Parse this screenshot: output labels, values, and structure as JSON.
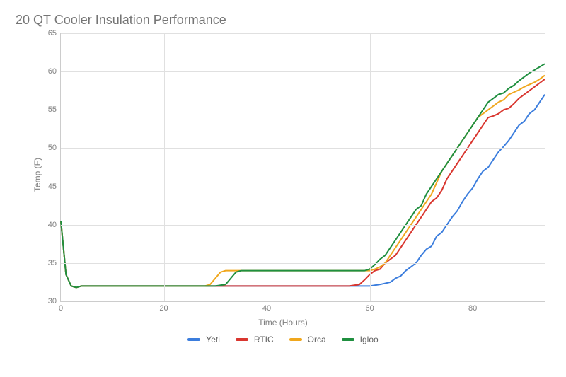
{
  "chart": {
    "type": "line",
    "title": "20 QT Cooler Insulation Performance",
    "title_fontsize": 18,
    "title_color": "#757575",
    "x_axis": {
      "label": "Time (Hours)",
      "min": 0,
      "max": 94,
      "ticks": [
        0,
        20,
        40,
        60,
        80
      ],
      "label_color": "#808080",
      "tick_fontsize": 11
    },
    "y_axis": {
      "label": "Temp (F)",
      "min": 30,
      "max": 65,
      "ticks": [
        30,
        35,
        40,
        45,
        50,
        55,
        60,
        65
      ],
      "label_color": "#808080",
      "tick_fontsize": 11
    },
    "background_color": "#ffffff",
    "grid_color": "#e0e0e0",
    "axis_line_color": "#cccccc",
    "line_width": 2,
    "legend": {
      "position": "bottom-center",
      "fontsize": 12,
      "text_color": "#606060"
    },
    "series": [
      {
        "name": "Yeti",
        "color": "#3b7ddd",
        "points": [
          [
            0,
            40.5
          ],
          [
            1,
            33.5
          ],
          [
            2,
            32
          ],
          [
            3,
            31.8
          ],
          [
            4,
            32
          ],
          [
            10,
            32
          ],
          [
            20,
            32
          ],
          [
            30,
            32
          ],
          [
            35,
            32
          ],
          [
            40,
            32
          ],
          [
            50,
            32
          ],
          [
            58,
            32
          ],
          [
            60,
            32
          ],
          [
            62,
            32.2
          ],
          [
            64,
            32.5
          ],
          [
            65,
            33
          ],
          [
            66,
            33.3
          ],
          [
            67,
            34
          ],
          [
            68,
            34.5
          ],
          [
            69,
            35
          ],
          [
            70,
            36
          ],
          [
            71,
            36.8
          ],
          [
            72,
            37.2
          ],
          [
            73,
            38.5
          ],
          [
            74,
            39
          ],
          [
            75,
            40
          ],
          [
            76,
            41
          ],
          [
            77,
            41.8
          ],
          [
            78,
            43
          ],
          [
            79,
            44
          ],
          [
            80,
            44.8
          ],
          [
            81,
            46
          ],
          [
            82,
            47
          ],
          [
            83,
            47.5
          ],
          [
            84,
            48.5
          ],
          [
            85,
            49.5
          ],
          [
            86,
            50.2
          ],
          [
            87,
            51
          ],
          [
            88,
            52
          ],
          [
            89,
            53
          ],
          [
            90,
            53.5
          ],
          [
            91,
            54.5
          ],
          [
            92,
            55
          ],
          [
            93,
            56
          ],
          [
            94,
            57
          ]
        ]
      },
      {
        "name": "RTIC",
        "color": "#d9362f",
        "points": [
          [
            0,
            40.5
          ],
          [
            1,
            33.5
          ],
          [
            2,
            32
          ],
          [
            3,
            31.8
          ],
          [
            4,
            32
          ],
          [
            10,
            32
          ],
          [
            20,
            32
          ],
          [
            30,
            32
          ],
          [
            35,
            32
          ],
          [
            40,
            32
          ],
          [
            50,
            32
          ],
          [
            56,
            32
          ],
          [
            58,
            32.2
          ],
          [
            59,
            32.8
          ],
          [
            60,
            33.5
          ],
          [
            61,
            34
          ],
          [
            62,
            34.2
          ],
          [
            63,
            35
          ],
          [
            64,
            35.5
          ],
          [
            65,
            36
          ],
          [
            66,
            37
          ],
          [
            67,
            38
          ],
          [
            68,
            39
          ],
          [
            69,
            40
          ],
          [
            70,
            41
          ],
          [
            71,
            42
          ],
          [
            72,
            43
          ],
          [
            73,
            43.5
          ],
          [
            74,
            44.5
          ],
          [
            75,
            46
          ],
          [
            76,
            47
          ],
          [
            77,
            48
          ],
          [
            78,
            49
          ],
          [
            79,
            50
          ],
          [
            80,
            51
          ],
          [
            81,
            52
          ],
          [
            82,
            53
          ],
          [
            83,
            54
          ],
          [
            84,
            54.2
          ],
          [
            85,
            54.5
          ],
          [
            86,
            55
          ],
          [
            87,
            55.2
          ],
          [
            88,
            55.8
          ],
          [
            89,
            56.5
          ],
          [
            90,
            57
          ],
          [
            91,
            57.5
          ],
          [
            92,
            58
          ],
          [
            93,
            58.5
          ],
          [
            94,
            59
          ]
        ]
      },
      {
        "name": "Orca",
        "color": "#f0a71d",
        "points": [
          [
            0,
            40.5
          ],
          [
            1,
            33.5
          ],
          [
            2,
            32
          ],
          [
            3,
            31.8
          ],
          [
            4,
            32
          ],
          [
            10,
            32
          ],
          [
            20,
            32
          ],
          [
            28,
            32
          ],
          [
            29,
            32.2
          ],
          [
            30,
            33
          ],
          [
            31,
            33.8
          ],
          [
            32,
            34
          ],
          [
            33,
            34
          ],
          [
            34,
            34
          ],
          [
            40,
            34
          ],
          [
            50,
            34
          ],
          [
            56,
            34
          ],
          [
            58,
            34
          ],
          [
            59,
            34
          ],
          [
            60,
            34
          ],
          [
            61,
            34.2
          ],
          [
            62,
            34.5
          ],
          [
            63,
            35
          ],
          [
            64,
            36
          ],
          [
            65,
            37
          ],
          [
            66,
            38
          ],
          [
            67,
            39
          ],
          [
            68,
            40
          ],
          [
            69,
            41
          ],
          [
            70,
            42
          ],
          [
            71,
            43
          ],
          [
            72,
            44
          ],
          [
            73,
            45.5
          ],
          [
            74,
            47
          ],
          [
            75,
            48
          ],
          [
            76,
            49
          ],
          [
            77,
            50
          ],
          [
            78,
            51
          ],
          [
            79,
            52
          ],
          [
            80,
            53
          ],
          [
            81,
            54
          ],
          [
            82,
            54.5
          ],
          [
            83,
            55
          ],
          [
            84,
            55.5
          ],
          [
            85,
            56
          ],
          [
            86,
            56.3
          ],
          [
            87,
            57
          ],
          [
            88,
            57.3
          ],
          [
            89,
            57.6
          ],
          [
            90,
            58
          ],
          [
            91,
            58.3
          ],
          [
            92,
            58.6
          ],
          [
            93,
            59
          ],
          [
            94,
            59.5
          ]
        ]
      },
      {
        "name": "Igloo",
        "color": "#1f8f3f",
        "points": [
          [
            0,
            40.5
          ],
          [
            1,
            33.5
          ],
          [
            2,
            32
          ],
          [
            3,
            31.8
          ],
          [
            4,
            32
          ],
          [
            10,
            32
          ],
          [
            20,
            32
          ],
          [
            30,
            32
          ],
          [
            32,
            32.2
          ],
          [
            33,
            33
          ],
          [
            34,
            33.8
          ],
          [
            35,
            34
          ],
          [
            36,
            34
          ],
          [
            40,
            34
          ],
          [
            50,
            34
          ],
          [
            58,
            34
          ],
          [
            59,
            34
          ],
          [
            60,
            34.2
          ],
          [
            61,
            34.8
          ],
          [
            62,
            35.5
          ],
          [
            63,
            36
          ],
          [
            64,
            37
          ],
          [
            65,
            38
          ],
          [
            66,
            39
          ],
          [
            67,
            40
          ],
          [
            68,
            41
          ],
          [
            69,
            42
          ],
          [
            70,
            42.5
          ],
          [
            71,
            44
          ],
          [
            72,
            45
          ],
          [
            73,
            46
          ],
          [
            74,
            47
          ],
          [
            75,
            48
          ],
          [
            76,
            49
          ],
          [
            77,
            50
          ],
          [
            78,
            51
          ],
          [
            79,
            52
          ],
          [
            80,
            53
          ],
          [
            81,
            54
          ],
          [
            82,
            55
          ],
          [
            83,
            56
          ],
          [
            84,
            56.5
          ],
          [
            85,
            57
          ],
          [
            86,
            57.2
          ],
          [
            87,
            57.8
          ],
          [
            88,
            58.2
          ],
          [
            89,
            58.8
          ],
          [
            90,
            59.3
          ],
          [
            91,
            59.8
          ],
          [
            92,
            60.2
          ],
          [
            93,
            60.6
          ],
          [
            94,
            61
          ]
        ]
      }
    ]
  }
}
